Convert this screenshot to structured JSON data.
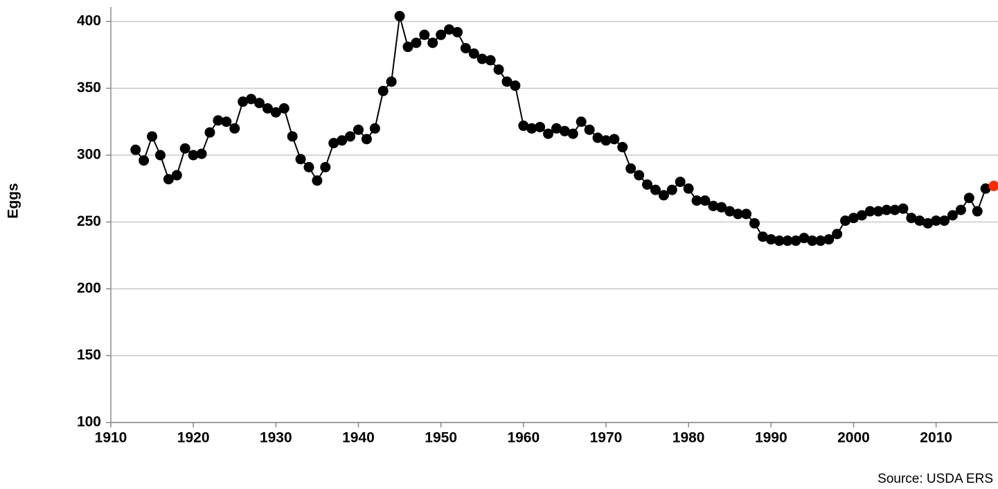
{
  "chart_data": {
    "type": "line",
    "y_label": "Eggs",
    "source": "Source: USDA ERS",
    "x": [
      1913,
      1914,
      1915,
      1916,
      1917,
      1918,
      1919,
      1920,
      1921,
      1922,
      1923,
      1924,
      1925,
      1926,
      1927,
      1928,
      1929,
      1930,
      1931,
      1932,
      1933,
      1934,
      1935,
      1936,
      1937,
      1938,
      1939,
      1940,
      1941,
      1942,
      1943,
      1944,
      1945,
      1946,
      1947,
      1948,
      1949,
      1950,
      1951,
      1952,
      1953,
      1954,
      1955,
      1956,
      1957,
      1958,
      1959,
      1960,
      1961,
      1962,
      1963,
      1964,
      1965,
      1966,
      1967,
      1968,
      1969,
      1970,
      1971,
      1972,
      1973,
      1974,
      1975,
      1976,
      1977,
      1978,
      1979,
      1980,
      1981,
      1982,
      1983,
      1984,
      1985,
      1986,
      1987,
      1988,
      1989,
      1990,
      1991,
      1992,
      1993,
      1994,
      1995,
      1996,
      1997,
      1998,
      1999,
      2000,
      2001,
      2002,
      2003,
      2004,
      2005,
      2006,
      2007,
      2008,
      2009,
      2010,
      2011,
      2012,
      2013,
      2014,
      2015,
      2016,
      2017
    ],
    "values": [
      304,
      296,
      314,
      300,
      282,
      285,
      305,
      300,
      301,
      317,
      326,
      325,
      320,
      340,
      342,
      339,
      335,
      332,
      335,
      314,
      297,
      291,
      281,
      291,
      309,
      311,
      314,
      319,
      312,
      320,
      348,
      355,
      404,
      381,
      384,
      390,
      384,
      390,
      394,
      392,
      380,
      376,
      372,
      371,
      364,
      355,
      352,
      322,
      320,
      321,
      316,
      320,
      318,
      316,
      325,
      319,
      313,
      311,
      312,
      306,
      290,
      285,
      278,
      274,
      270,
      274,
      280,
      275,
      266,
      266,
      262,
      261,
      258,
      256,
      256,
      249,
      239,
      237,
      236,
      236,
      236,
      238,
      236,
      236,
      237,
      241,
      251,
      253,
      255,
      258,
      258,
      259,
      259,
      260,
      253,
      251,
      249,
      251,
      251,
      255,
      259,
      268,
      258,
      275,
      277
    ],
    "color": "#000000",
    "highlight_last_color": "#ff2a00",
    "xlim": [
      1910,
      2017.5
    ],
    "xticks": [
      1910,
      1920,
      1930,
      1940,
      1950,
      1960,
      1970,
      1980,
      1990,
      2000,
      2010
    ],
    "ylim": [
      100,
      400
    ],
    "yticks": [
      100,
      150,
      200,
      250,
      300,
      350,
      400
    ],
    "grid": true
  }
}
